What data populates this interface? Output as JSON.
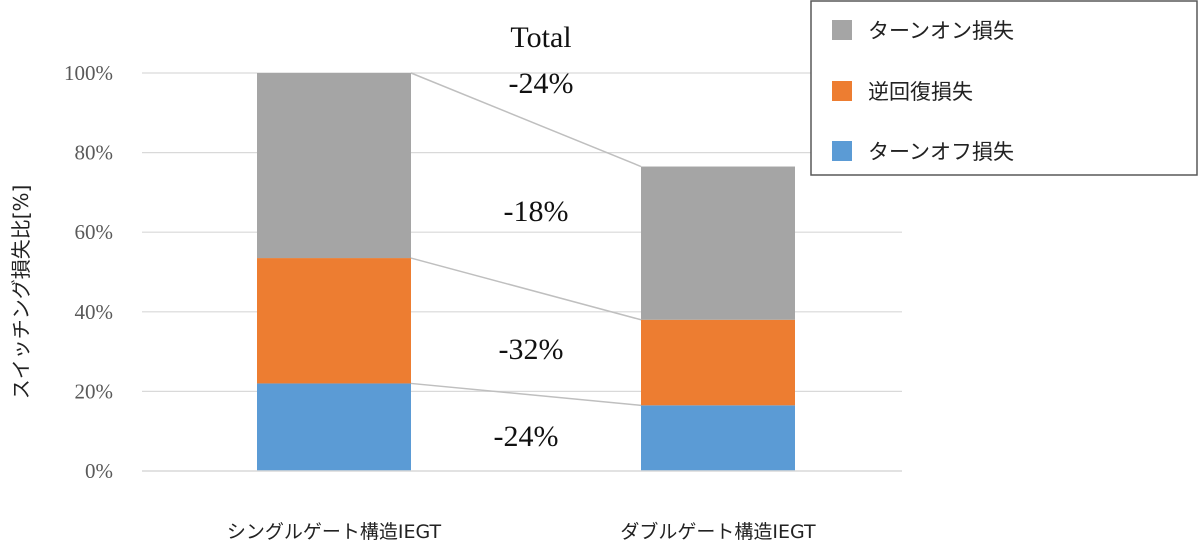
{
  "chart_data": {
    "type": "bar",
    "stacked": true,
    "categories": [
      "シングルゲート構造IEGT",
      "ダブルゲート構造IEGT"
    ],
    "series": [
      {
        "name": "ターンオフ損失",
        "color": "#5b9bd5",
        "values": [
          22,
          16.5
        ]
      },
      {
        "name": "逆回復損失",
        "color": "#ed7d31",
        "values": [
          31.5,
          21.5
        ]
      },
      {
        "name": "ターンオン損失",
        "color": "#a5a5a5",
        "values": [
          46.5,
          38.5
        ]
      }
    ],
    "ylabel": "スイッチング損失比[%]",
    "ylim": [
      0,
      100
    ],
    "yticks": [
      {
        "value": 0,
        "label": "0%"
      },
      {
        "value": 20,
        "label": "20%"
      },
      {
        "value": 40,
        "label": "40%"
      },
      {
        "value": 60,
        "label": "60%"
      },
      {
        "value": 80,
        "label": "80%"
      },
      {
        "value": 100,
        "label": "100%"
      }
    ],
    "grid": true,
    "legend": {
      "position": "top-right",
      "order": [
        "ターンオン損失",
        "逆回復損失",
        "ターンオフ損失"
      ]
    },
    "annotations": {
      "total_title": "Total",
      "total": "-24%",
      "turn_on": "-18%",
      "reverse_recovery": "-32%",
      "turn_off": "-24%"
    }
  }
}
